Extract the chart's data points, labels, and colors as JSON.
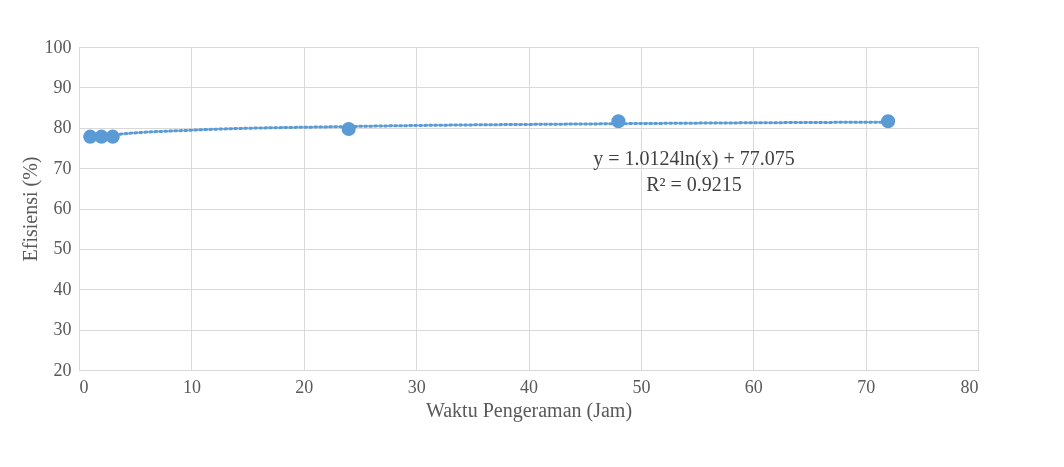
{
  "chart_data": {
    "type": "scatter",
    "xlabel": "Waktu Pengeraman (Jam)",
    "ylabel": "Efisiensi  (%)",
    "xlim": [
      0,
      80
    ],
    "xticks": [
      0,
      10,
      20,
      30,
      40,
      50,
      60,
      70,
      80
    ],
    "ylim": [
      20,
      100
    ],
    "yticks": [
      20,
      30,
      40,
      50,
      60,
      70,
      80,
      90,
      100
    ],
    "grid": true,
    "series": [
      {
        "marker": "circle",
        "color": "#5b9bd5",
        "x": [
          1,
          2,
          3,
          24,
          48,
          72
        ],
        "values": [
          77.8,
          77.8,
          77.8,
          79.7,
          81.6,
          81.6
        ]
      },
      {
        "type": "line",
        "line_style": "dotted",
        "marker": "none",
        "color": "#5b9bd5",
        "x": [
          1,
          3,
          10,
          24,
          48,
          72
        ],
        "values": [
          77.1,
          78.2,
          79.4,
          80.3,
          81.0,
          81.4
        ]
      }
    ],
    "annotations": [
      "y = 1.0124ln(x) + 77.075",
      "R² = 0.9215"
    ]
  }
}
